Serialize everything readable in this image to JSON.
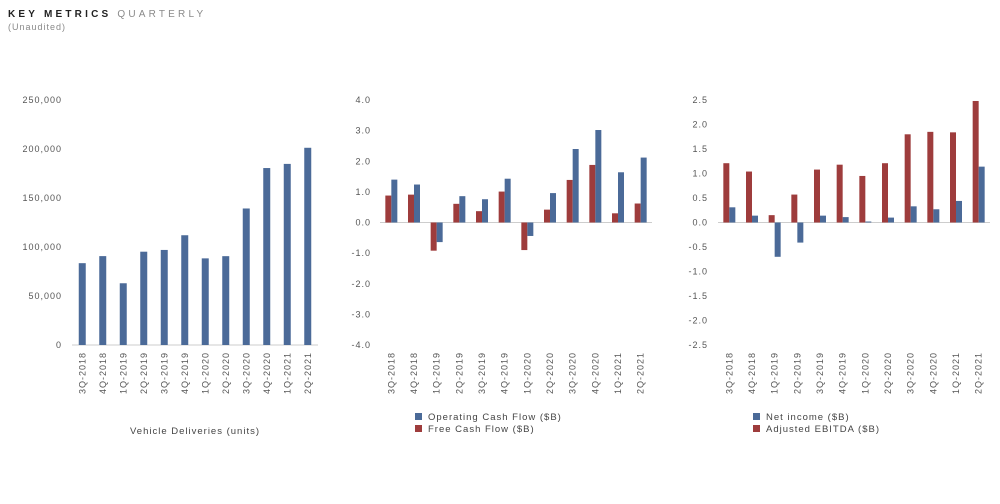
{
  "header": {
    "title_bold": "KEY METRICS",
    "title_light": "QUARTERLY",
    "subtitle": "(Unaudited)"
  },
  "colors": {
    "blue": "#4b6a98",
    "red": "#9e3c3c",
    "axis": "#bdbdbd"
  },
  "chart_data": [
    {
      "type": "bar",
      "title": "",
      "xlabel": "Vehicle Deliveries (units)",
      "ylabel": "",
      "categories": [
        "3Q-2018",
        "4Q-2018",
        "1Q-2019",
        "2Q-2019",
        "3Q-2019",
        "4Q-2019",
        "1Q-2020",
        "2Q-2020",
        "3Q-2020",
        "4Q-2020",
        "1Q-2021",
        "2Q-2021"
      ],
      "series": [
        {
          "values": [
            83500,
            90700,
            63000,
            95200,
            97000,
            112000,
            88400,
            90650,
            139300,
            180570,
            184800,
            201250
          ]
        }
      ],
      "ylim": [
        0,
        250000
      ],
      "yticks": [
        0,
        50000,
        100000,
        150000,
        200000,
        250000
      ],
      "ytick_labels": [
        "0",
        "50,000",
        "100,000",
        "150,000",
        "200,000",
        "250,000"
      ],
      "grid": false
    },
    {
      "type": "bar",
      "title": "",
      "xlabel": "",
      "ylabel": "",
      "categories": [
        "3Q-2018",
        "4Q-2018",
        "1Q-2019",
        "2Q-2019",
        "3Q-2019",
        "4Q-2019",
        "1Q-2020",
        "2Q-2020",
        "3Q-2020",
        "4Q-2020",
        "1Q-2021",
        "2Q-2021"
      ],
      "series": [
        {
          "name": "Operating Cash Flow ($B)",
          "values": [
            1.4,
            1.24,
            -0.64,
            0.86,
            0.76,
            1.43,
            -0.44,
            0.96,
            2.4,
            3.02,
            1.64,
            2.12
          ]
        },
        {
          "name": "Free Cash Flow ($B)",
          "values": [
            0.88,
            0.91,
            -0.92,
            0.61,
            0.37,
            1.01,
            -0.9,
            0.42,
            1.39,
            1.88,
            0.3,
            0.62
          ]
        }
      ],
      "ylim": [
        -4,
        4
      ],
      "yticks": [
        -4,
        -3,
        -2,
        -1,
        0,
        1,
        2,
        3,
        4
      ],
      "ytick_labels": [
        "-4.0",
        "-3.0",
        "-2.0",
        "-1.0",
        "0.0",
        "1.0",
        "2.0",
        "3.0",
        "4.0"
      ],
      "legend": "bottom",
      "grid": false
    },
    {
      "type": "bar",
      "title": "",
      "xlabel": "",
      "ylabel": "",
      "categories": [
        "3Q-2018",
        "4Q-2018",
        "1Q-2019",
        "2Q-2019",
        "3Q-2019",
        "4Q-2019",
        "1Q-2020",
        "2Q-2020",
        "3Q-2020",
        "4Q-2020",
        "1Q-2021",
        "2Q-2021"
      ],
      "series": [
        {
          "name": "Net income ($B)",
          "values": [
            0.31,
            0.14,
            -0.7,
            -0.41,
            0.14,
            0.11,
            0.02,
            0.1,
            0.33,
            0.27,
            0.44,
            1.14
          ]
        },
        {
          "name": "Adjusted EBITDA ($B)",
          "values": [
            1.21,
            1.04,
            0.15,
            0.57,
            1.08,
            1.18,
            0.95,
            1.21,
            1.8,
            1.85,
            1.84,
            2.48
          ]
        }
      ],
      "ylim": [
        -2.5,
        2.5
      ],
      "yticks": [
        -2.5,
        -2,
        -1.5,
        -1,
        -0.5,
        0,
        0.5,
        1,
        1.5,
        2,
        2.5
      ],
      "ytick_labels": [
        "-2.5",
        "-2.0",
        "-1.5",
        "-1.0",
        "-0.5",
        "0.0",
        "0.5",
        "1.0",
        "1.5",
        "2.0",
        "2.5"
      ],
      "legend": "bottom",
      "grid": false
    }
  ]
}
